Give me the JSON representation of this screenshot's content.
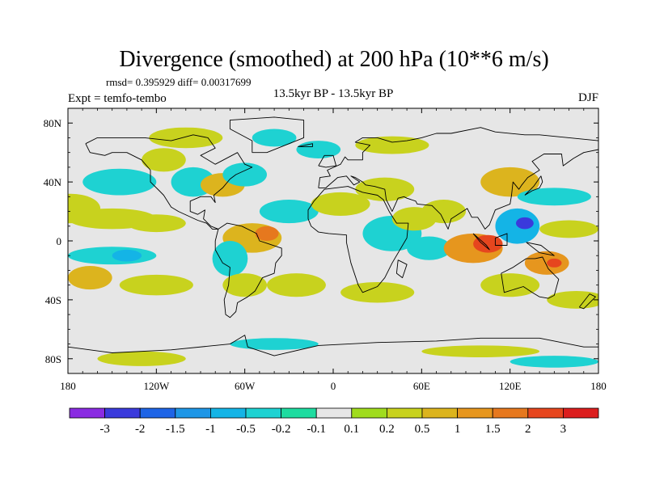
{
  "chart_data": {
    "type": "heatmap",
    "title": "Divergence (smoothed) at 200 hPa (10**6 m/s)",
    "stats": "rmsd= 0.395929 diff= 0.00317699",
    "experiment": "Expt = temfo-tembo",
    "subtitle": "13.5kyr BP - 13.5kyr BP",
    "season": "DJF",
    "x_axis": {
      "range": [
        -180,
        180
      ],
      "ticks": [
        {
          "value": -180,
          "label": "180"
        },
        {
          "value": -120,
          "label": "120W"
        },
        {
          "value": -60,
          "label": "60W"
        },
        {
          "value": 0,
          "label": "0"
        },
        {
          "value": 60,
          "label": "60E"
        },
        {
          "value": 120,
          "label": "120E"
        },
        {
          "value": 180,
          "label": "180"
        }
      ]
    },
    "y_axis": {
      "range": [
        -90,
        90
      ],
      "ticks": [
        {
          "value": 80,
          "label": "80N"
        },
        {
          "value": 40,
          "label": "40N"
        },
        {
          "value": 0,
          "label": "0"
        },
        {
          "value": -40,
          "label": "40S"
        },
        {
          "value": -80,
          "label": "80S"
        }
      ]
    },
    "colorbar": {
      "colors": [
        "#8a2be2",
        "#3a3adc",
        "#1e64e6",
        "#1e96e6",
        "#14b4e6",
        "#1ed2d2",
        "#1edca0",
        "#e6e6e6",
        "#a0dc1e",
        "#c8d21e",
        "#dcb41e",
        "#e6961e",
        "#e6781e",
        "#e6461e",
        "#dc1e1e"
      ],
      "labels": [
        "-3",
        "-2",
        "-1.5",
        "-1",
        "-0.5",
        "-0.2",
        "-0.1",
        "0.1",
        "0.2",
        "0.5",
        "1",
        "1.5",
        "2",
        "3"
      ],
      "background": "#e6e6e6"
    },
    "field_blobs": [
      {
        "lon": -178,
        "lat": 22,
        "rlon": 20,
        "rlat": 10,
        "value": 0.3
      },
      {
        "lon": -150,
        "lat": 15,
        "rlon": 30,
        "rlat": 7,
        "value": 0.3
      },
      {
        "lon": -120,
        "lat": 12,
        "rlon": 20,
        "rlat": 6,
        "value": 0.3
      },
      {
        "lon": -165,
        "lat": -25,
        "rlon": 15,
        "rlat": 8,
        "value": 0.6
      },
      {
        "lon": -120,
        "lat": -30,
        "rlon": 25,
        "rlat": 7,
        "value": 0.3
      },
      {
        "lon": -150,
        "lat": -10,
        "rlon": 30,
        "rlat": 6,
        "value": -0.4
      },
      {
        "lon": -140,
        "lat": -10,
        "rlon": 10,
        "rlat": 4,
        "value": -0.8
      },
      {
        "lon": -145,
        "lat": 40,
        "rlon": 25,
        "rlat": 9,
        "value": -0.3
      },
      {
        "lon": -115,
        "lat": 55,
        "rlon": 15,
        "rlat": 8,
        "value": 0.3
      },
      {
        "lon": -95,
        "lat": 40,
        "rlon": 15,
        "rlat": 10,
        "value": -0.3
      },
      {
        "lon": -75,
        "lat": 38,
        "rlon": 15,
        "rlat": 8,
        "value": 0.5
      },
      {
        "lon": -60,
        "lat": 45,
        "rlon": 15,
        "rlat": 8,
        "value": -0.4
      },
      {
        "lon": -100,
        "lat": 70,
        "rlon": 25,
        "rlat": 7,
        "value": 0.3
      },
      {
        "lon": -40,
        "lat": 70,
        "rlon": 15,
        "rlat": 6,
        "value": -0.3
      },
      {
        "lon": -10,
        "lat": 62,
        "rlon": 15,
        "rlat": 6,
        "value": -0.3
      },
      {
        "lon": 40,
        "lat": 65,
        "rlon": 25,
        "rlat": 6,
        "value": 0.3
      },
      {
        "lon": -55,
        "lat": 2,
        "rlon": 20,
        "rlat": 10,
        "value": 0.9
      },
      {
        "lon": -45,
        "lat": 5,
        "rlon": 8,
        "rlat": 5,
        "value": 1.5
      },
      {
        "lon": -30,
        "lat": 20,
        "rlon": 20,
        "rlat": 8,
        "value": -0.3
      },
      {
        "lon": -70,
        "lat": -12,
        "rlon": 12,
        "rlat": 12,
        "value": -0.3
      },
      {
        "lon": -60,
        "lat": -30,
        "rlon": 15,
        "rlat": 8,
        "value": 0.3
      },
      {
        "lon": -25,
        "lat": -30,
        "rlon": 20,
        "rlat": 8,
        "value": 0.3
      },
      {
        "lon": 5,
        "lat": 25,
        "rlon": 20,
        "rlat": 8,
        "value": 0.3
      },
      {
        "lon": 35,
        "lat": 35,
        "rlon": 20,
        "rlat": 8,
        "value": 0.3
      },
      {
        "lon": 40,
        "lat": 5,
        "rlon": 20,
        "rlat": 12,
        "value": -0.3
      },
      {
        "lon": 55,
        "lat": 15,
        "rlon": 15,
        "rlat": 8,
        "value": 0.3
      },
      {
        "lon": 75,
        "lat": 20,
        "rlon": 15,
        "rlat": 8,
        "value": 0.3
      },
      {
        "lon": 65,
        "lat": -5,
        "rlon": 15,
        "rlat": 8,
        "value": -0.3
      },
      {
        "lon": 30,
        "lat": -35,
        "rlon": 25,
        "rlat": 7,
        "value": 0.3
      },
      {
        "lon": 95,
        "lat": -5,
        "rlon": 20,
        "rlat": 10,
        "value": 1.0
      },
      {
        "lon": 105,
        "lat": -2,
        "rlon": 10,
        "rlat": 6,
        "value": 2.5
      },
      {
        "lon": 125,
        "lat": 10,
        "rlon": 15,
        "rlat": 12,
        "value": -1.0
      },
      {
        "lon": 130,
        "lat": 12,
        "rlon": 6,
        "rlat": 4,
        "value": -2.5
      },
      {
        "lon": 120,
        "lat": 40,
        "rlon": 20,
        "rlat": 10,
        "value": 0.5
      },
      {
        "lon": 150,
        "lat": 30,
        "rlon": 25,
        "rlat": 6,
        "value": -0.3
      },
      {
        "lon": 160,
        "lat": 8,
        "rlon": 20,
        "rlat": 6,
        "value": 0.3
      },
      {
        "lon": 145,
        "lat": -15,
        "rlon": 15,
        "rlat": 8,
        "value": 1.2
      },
      {
        "lon": 150,
        "lat": -15,
        "rlon": 5,
        "rlat": 3,
        "value": 2.5
      },
      {
        "lon": 120,
        "lat": -30,
        "rlon": 20,
        "rlat": 8,
        "value": 0.3
      },
      {
        "lon": 165,
        "lat": -40,
        "rlon": 20,
        "rlat": 6,
        "value": 0.3
      },
      {
        "lon": -130,
        "lat": -80,
        "rlon": 30,
        "rlat": 5,
        "value": 0.3
      },
      {
        "lon": -40,
        "lat": -70,
        "rlon": 30,
        "rlat": 4,
        "value": -0.3
      },
      {
        "lon": 100,
        "lat": -75,
        "rlon": 40,
        "rlat": 4,
        "value": 0.2
      },
      {
        "lon": 150,
        "lat": -82,
        "rlon": 30,
        "rlat": 4,
        "value": -0.3
      }
    ],
    "coastline_polygons": [
      [
        [
          -168,
          66
        ],
        [
          -160,
          70
        ],
        [
          -140,
          70
        ],
        [
          -128,
          70
        ],
        [
          -110,
          68
        ],
        [
          -95,
          72
        ],
        [
          -85,
          70
        ],
        [
          -80,
          63
        ],
        [
          -90,
          58
        ],
        [
          -80,
          52
        ],
        [
          -65,
          60
        ],
        [
          -60,
          52
        ],
        [
          -55,
          50
        ],
        [
          -66,
          45
        ],
        [
          -70,
          42
        ],
        [
          -75,
          36
        ],
        [
          -81,
          31
        ],
        [
          -80,
          26
        ],
        [
          -83,
          30
        ],
        [
          -90,
          30
        ],
        [
          -97,
          27
        ],
        [
          -97,
          20
        ],
        [
          -92,
          18
        ],
        [
          -87,
          21
        ],
        [
          -88,
          15
        ],
        [
          -83,
          10
        ],
        [
          -78,
          8
        ],
        [
          -82,
          8
        ],
        [
          -86,
          12
        ],
        [
          -92,
          14
        ],
        [
          -105,
          20
        ],
        [
          -110,
          23
        ],
        [
          -115,
          31
        ],
        [
          -118,
          34
        ],
        [
          -124,
          40
        ],
        [
          -124,
          48
        ],
        [
          -130,
          55
        ],
        [
          -140,
          60
        ],
        [
          -150,
          60
        ],
        [
          -155,
          58
        ],
        [
          -165,
          60
        ],
        [
          -168,
          66
        ]
      ],
      [
        [
          -78,
          8
        ],
        [
          -72,
          12
        ],
        [
          -62,
          10
        ],
        [
          -52,
          5
        ],
        [
          -50,
          0
        ],
        [
          -44,
          -2
        ],
        [
          -35,
          -5
        ],
        [
          -35,
          -10
        ],
        [
          -39,
          -15
        ],
        [
          -40,
          -22
        ],
        [
          -48,
          -25
        ],
        [
          -53,
          -34
        ],
        [
          -58,
          -38
        ],
        [
          -65,
          -42
        ],
        [
          -66,
          -48
        ],
        [
          -70,
          -52
        ],
        [
          -73,
          -50
        ],
        [
          -74,
          -40
        ],
        [
          -71,
          -30
        ],
        [
          -70,
          -18
        ],
        [
          -75,
          -15
        ],
        [
          -80,
          -6
        ],
        [
          -80,
          0
        ],
        [
          -78,
          8
        ]
      ],
      [
        [
          -17,
          15
        ],
        [
          -17,
          21
        ],
        [
          -13,
          27
        ],
        [
          -6,
          35
        ],
        [
          10,
          37
        ],
        [
          20,
          33
        ],
        [
          30,
          31
        ],
        [
          34,
          28
        ],
        [
          38,
          20
        ],
        [
          43,
          12
        ],
        [
          51,
          12
        ],
        [
          50,
          2
        ],
        [
          40,
          -15
        ],
        [
          35,
          -25
        ],
        [
          30,
          -31
        ],
        [
          20,
          -35
        ],
        [
          17,
          -30
        ],
        [
          12,
          -15
        ],
        [
          9,
          -1
        ],
        [
          9,
          4
        ],
        [
          -3,
          5
        ],
        [
          -10,
          6
        ],
        [
          -15,
          10
        ],
        [
          -17,
          15
        ]
      ],
      [
        [
          -10,
          36
        ],
        [
          -9,
          43
        ],
        [
          -2,
          44
        ],
        [
          -4,
          48
        ],
        [
          5,
          52
        ],
        [
          8,
          57
        ],
        [
          10,
          55
        ],
        [
          20,
          55
        ],
        [
          20,
          60
        ],
        [
          25,
          65
        ],
        [
          15,
          67
        ],
        [
          20,
          70
        ],
        [
          30,
          70
        ],
        [
          40,
          67
        ],
        [
          50,
          68
        ],
        [
          60,
          70
        ],
        [
          70,
          73
        ],
        [
          80,
          73
        ],
        [
          100,
          77
        ],
        [
          110,
          74
        ],
        [
          130,
          72
        ],
        [
          140,
          72
        ],
        [
          160,
          70
        ],
        [
          180,
          68
        ],
        [
          180,
          62
        ],
        [
          170,
          60
        ],
        [
          163,
          56
        ],
        [
          156,
          51
        ],
        [
          155,
          59
        ],
        [
          143,
          59
        ],
        [
          135,
          54
        ],
        [
          140,
          48
        ],
        [
          132,
          43
        ],
        [
          128,
          38
        ],
        [
          126,
          35
        ],
        [
          122,
          40
        ],
        [
          121,
          31
        ],
        [
          120,
          25
        ],
        [
          110,
          21
        ],
        [
          108,
          16
        ],
        [
          106,
          11
        ],
        [
          103,
          8
        ],
        [
          100,
          13
        ],
        [
          98,
          16
        ],
        [
          94,
          16
        ],
        [
          91,
          22
        ],
        [
          80,
          15
        ],
        [
          78,
          8
        ],
        [
          73,
          18
        ],
        [
          67,
          24
        ],
        [
          57,
          25
        ],
        [
          56,
          27
        ],
        [
          50,
          29
        ],
        [
          48,
          30
        ],
        [
          44,
          29
        ],
        [
          40,
          20
        ],
        [
          36,
          28
        ],
        [
          35,
          35
        ],
        [
          28,
          37
        ],
        [
          22,
          38
        ],
        [
          20,
          40
        ],
        [
          15,
          43
        ],
        [
          12,
          44
        ],
        [
          18,
          40
        ],
        [
          14,
          38
        ],
        [
          9,
          44
        ],
        [
          3,
          43
        ],
        [
          -5,
          36
        ],
        [
          -10,
          36
        ]
      ],
      [
        [
          -55,
          60
        ],
        [
          -45,
          60
        ],
        [
          -20,
          70
        ],
        [
          -20,
          82
        ],
        [
          -40,
          84
        ],
        [
          -70,
          82
        ],
        [
          -70,
          76
        ],
        [
          -55,
          68
        ],
        [
          -55,
          60
        ]
      ],
      [
        [
          114,
          -22
        ],
        [
          122,
          -18
        ],
        [
          131,
          -12
        ],
        [
          137,
          -12
        ],
        [
          142,
          -11
        ],
        [
          146,
          -19
        ],
        [
          153,
          -26
        ],
        [
          150,
          -37
        ],
        [
          146,
          -39
        ],
        [
          140,
          -38
        ],
        [
          135,
          -35
        ],
        [
          129,
          -31
        ],
        [
          116,
          -35
        ],
        [
          114,
          -22
        ]
      ],
      [
        [
          -180,
          -72
        ],
        [
          -150,
          -76
        ],
        [
          -110,
          -74
        ],
        [
          -70,
          -70
        ],
        [
          -60,
          -64
        ],
        [
          -58,
          -72
        ],
        [
          -40,
          -78
        ],
        [
          -10,
          -71
        ],
        [
          30,
          -69
        ],
        [
          70,
          -68
        ],
        [
          100,
          -66
        ],
        [
          140,
          -66
        ],
        [
          170,
          -72
        ],
        [
          180,
          -72
        ]
      ],
      [
        [
          95,
          5
        ],
        [
          104,
          -3
        ],
        [
          106,
          -6
        ],
        [
          100,
          -1
        ],
        [
          95,
          5
        ]
      ],
      [
        [
          110,
          2
        ],
        [
          118,
          5
        ],
        [
          118,
          -3
        ],
        [
          110,
          -3
        ],
        [
          110,
          2
        ]
      ],
      [
        [
          131,
          -1
        ],
        [
          141,
          -3
        ],
        [
          150,
          -10
        ],
        [
          140,
          -8
        ],
        [
          131,
          -1
        ]
      ],
      [
        [
          130,
          31
        ],
        [
          135,
          34
        ],
        [
          140,
          36
        ],
        [
          142,
          40
        ],
        [
          141,
          44
        ],
        [
          136,
          37
        ],
        [
          130,
          31
        ]
      ],
      [
        [
          -10,
          51
        ],
        [
          -6,
          58
        ],
        [
          0,
          58
        ],
        [
          2,
          51
        ],
        [
          -5,
          50
        ],
        [
          -10,
          51
        ]
      ],
      [
        [
          44,
          -13
        ],
        [
          50,
          -16
        ],
        [
          47,
          -25
        ],
        [
          43,
          -22
        ],
        [
          44,
          -13
        ]
      ],
      [
        [
          167,
          -45
        ],
        [
          174,
          -36
        ],
        [
          178,
          -38
        ],
        [
          170,
          -46
        ],
        [
          167,
          -45
        ]
      ],
      [
        [
          -24,
          64
        ],
        [
          -14,
          66
        ],
        [
          -14,
          64
        ],
        [
          -24,
          64
        ]
      ]
    ]
  }
}
